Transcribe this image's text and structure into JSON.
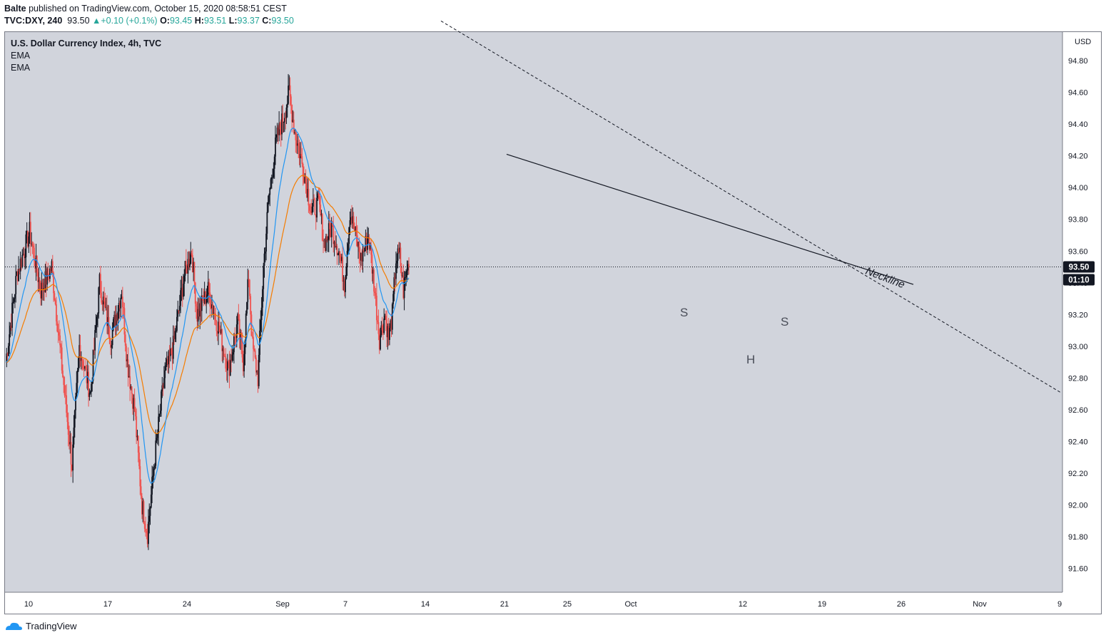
{
  "header": {
    "user": "Balte",
    "published_text": "published on TradingView.com, October 15, 2020 08:58:51 CEST",
    "symbol": "TVC:DXY, 240",
    "last": "93.50",
    "change": "+0.10 (+0.1%)",
    "o_label": "O:",
    "o": "93.45",
    "h_label": "H:",
    "h": "93.51",
    "l_label": "L:",
    "l": "93.37",
    "c_label": "C:",
    "c": "93.50"
  },
  "legend": {
    "title": "U.S. Dollar Currency Index, 4h, TVC",
    "ind1": "EMA",
    "ind2": "EMA"
  },
  "footer": {
    "brand": "TradingView"
  },
  "colors": {
    "background": "#d1d4dc",
    "up_candle": "#131722",
    "down_candle": "#ef5350",
    "ema_fast": "#2196f3",
    "ema_slow": "#f57c00",
    "price_label_bg": "#131722",
    "trendline": "#131722"
  },
  "chart_data": {
    "type": "candlestick",
    "title": "U.S. Dollar Currency Index, 4h, TVC",
    "y_unit": "USD",
    "ylim": [
      91.45,
      94.98
    ],
    "y_ticks": [
      "91.60",
      "91.80",
      "92.00",
      "92.20",
      "92.40",
      "92.60",
      "92.80",
      "93.00",
      "93.20",
      "93.40",
      "93.60",
      "93.80",
      "94.00",
      "94.20",
      "94.40",
      "94.60",
      "94.80"
    ],
    "x_ticks": [
      "10",
      "17",
      "24",
      "Sep",
      "7",
      "14",
      "21",
      "25",
      "Oct",
      "12",
      "19",
      "26",
      "Nov",
      "9"
    ],
    "last_price": "93.50",
    "countdown": "01:10",
    "close_path": [
      {
        "t": 0,
        "v": 92.9
      },
      {
        "t": 6,
        "v": 93.45
      },
      {
        "t": 13,
        "v": 93.72
      },
      {
        "t": 19,
        "v": 93.35
      },
      {
        "t": 25,
        "v": 93.5
      },
      {
        "t": 32,
        "v": 92.7
      },
      {
        "t": 36,
        "v": 92.25
      },
      {
        "t": 40,
        "v": 93.0
      },
      {
        "t": 46,
        "v": 92.7
      },
      {
        "t": 51,
        "v": 93.4
      },
      {
        "t": 57,
        "v": 93.05
      },
      {
        "t": 63,
        "v": 93.35
      },
      {
        "t": 66,
        "v": 92.9
      },
      {
        "t": 70,
        "v": 92.6
      },
      {
        "t": 74,
        "v": 92.0
      },
      {
        "t": 77,
        "v": 91.82
      },
      {
        "t": 81,
        "v": 92.3
      },
      {
        "t": 86,
        "v": 92.8
      },
      {
        "t": 91,
        "v": 93.0
      },
      {
        "t": 97,
        "v": 93.45
      },
      {
        "t": 101,
        "v": 93.6
      },
      {
        "t": 104,
        "v": 93.2
      },
      {
        "t": 110,
        "v": 93.35
      },
      {
        "t": 116,
        "v": 93.1
      },
      {
        "t": 121,
        "v": 92.85
      },
      {
        "t": 126,
        "v": 93.15
      },
      {
        "t": 129,
        "v": 92.9
      },
      {
        "t": 132,
        "v": 93.45
      },
      {
        "t": 134,
        "v": 93.0
      },
      {
        "t": 137,
        "v": 92.8
      },
      {
        "t": 140,
        "v": 93.5
      },
      {
        "t": 143,
        "v": 93.95
      },
      {
        "t": 147,
        "v": 94.3
      },
      {
        "t": 151,
        "v": 94.45
      },
      {
        "t": 154,
        "v": 94.6
      },
      {
        "t": 157,
        "v": 94.35
      },
      {
        "t": 162,
        "v": 94.1
      },
      {
        "t": 166,
        "v": 93.85
      },
      {
        "t": 170,
        "v": 93.9
      },
      {
        "t": 173,
        "v": 93.65
      },
      {
        "t": 177,
        "v": 93.75
      },
      {
        "t": 181,
        "v": 93.6
      },
      {
        "t": 184,
        "v": 93.4
      },
      {
        "t": 187,
        "v": 93.85
      },
      {
        "t": 190,
        "v": 93.7
      },
      {
        "t": 193,
        "v": 93.55
      },
      {
        "t": 197,
        "v": 93.7
      },
      {
        "t": 200,
        "v": 93.4
      },
      {
        "t": 203,
        "v": 93.05
      },
      {
        "t": 206,
        "v": 93.2
      },
      {
        "t": 208,
        "v": 93.05
      },
      {
        "t": 210,
        "v": 93.2
      },
      {
        "t": 212,
        "v": 93.55
      },
      {
        "t": 214,
        "v": 93.57
      },
      {
        "t": 216,
        "v": 93.35
      },
      {
        "t": 218,
        "v": 93.5
      }
    ],
    "series": [
      {
        "name": "EMA",
        "color": "#2196f3"
      },
      {
        "name": "EMA",
        "color": "#f57c00"
      }
    ],
    "annotations": {
      "neckline_label": "Neckline",
      "left_shoulder": "S",
      "head": "H",
      "right_shoulder": "S",
      "neckline": [
        {
          "date": "Aug 21",
          "v": 94.21
        },
        {
          "date": "Oct 27",
          "v": 93.39
        }
      ],
      "trendline": [
        {
          "date": "Aug 12",
          "v": 95.05
        },
        {
          "date": "Nov 10",
          "v": 92.71
        }
      ]
    },
    "grid": false,
    "legend_position": "top-left"
  }
}
